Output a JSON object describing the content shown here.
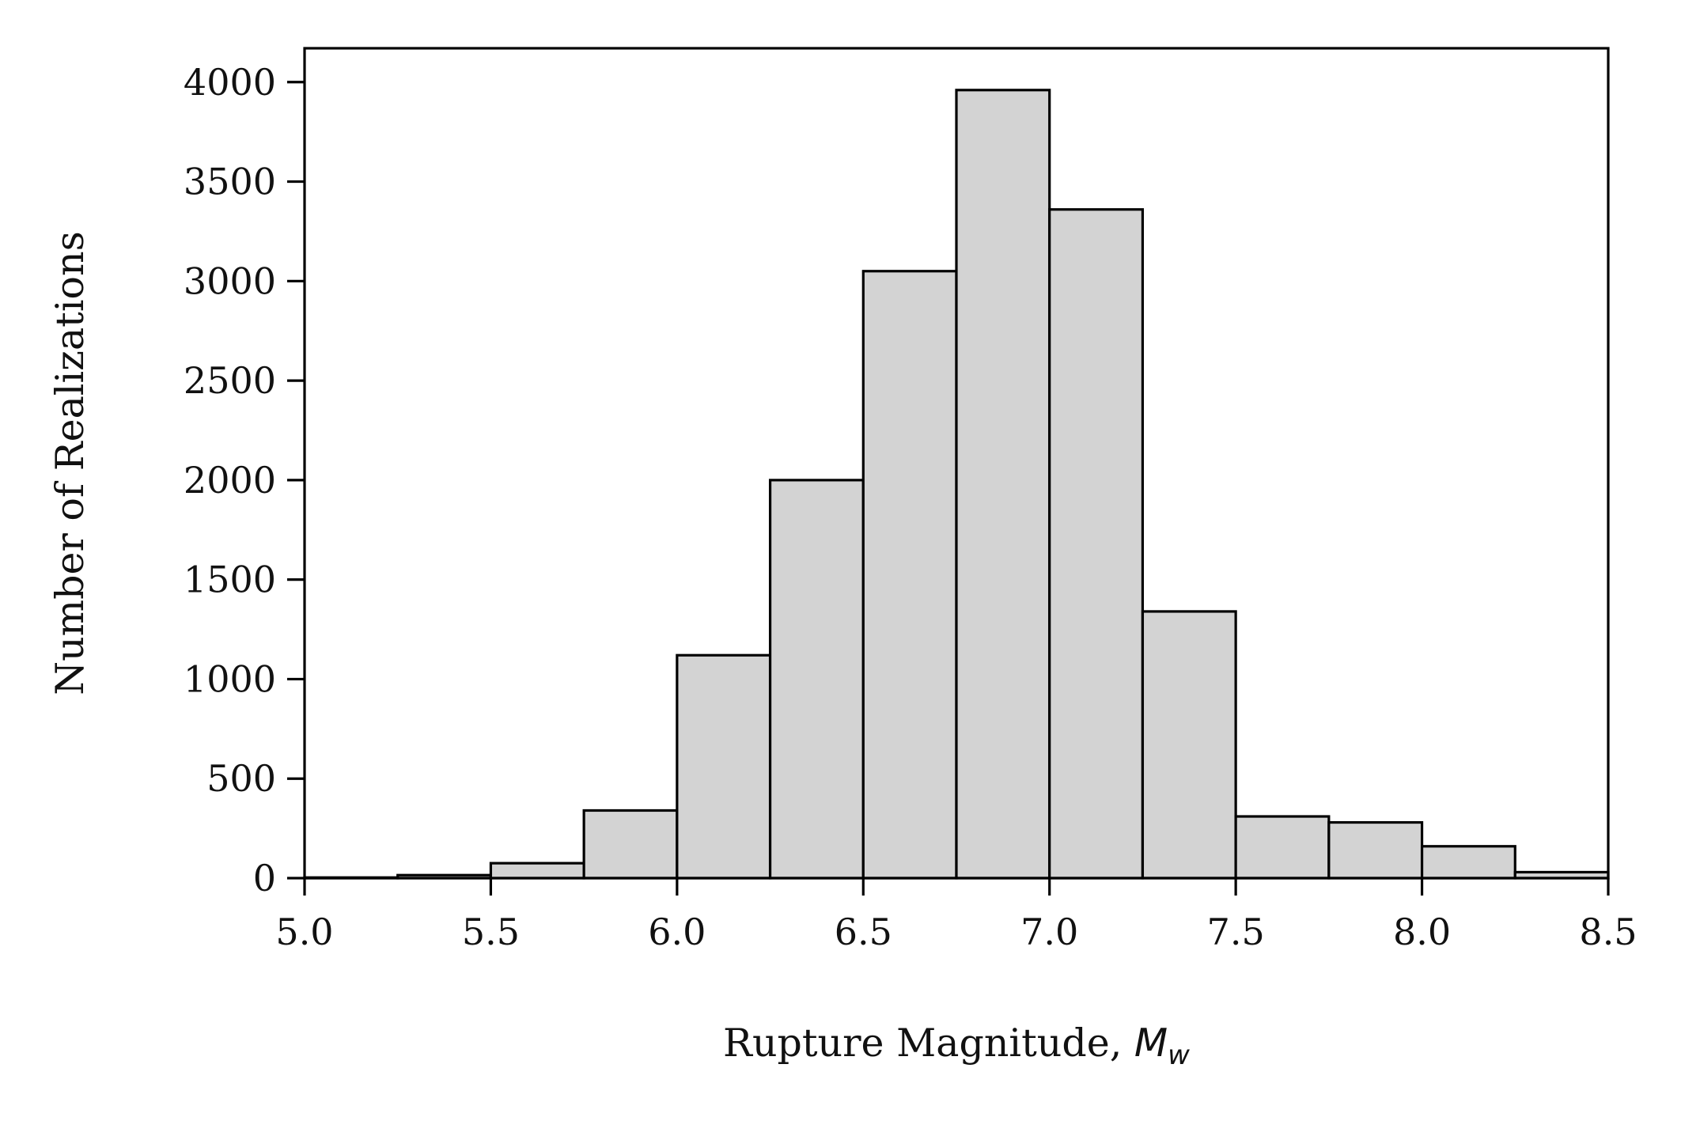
{
  "chart_data": {
    "type": "bar",
    "subtype": "histogram",
    "title": "",
    "xlabel": "Rupture Magnitude, ",
    "xlabel_math": "M",
    "xlabel_math_sub": "w",
    "ylabel": "Number of Realizations",
    "xlim": [
      5.0,
      8.5
    ],
    "ylim": [
      0,
      4170
    ],
    "xticks": [
      5.0,
      5.5,
      6.0,
      6.5,
      7.0,
      7.5,
      8.0,
      8.5
    ],
    "xtick_labels": [
      "5.0",
      "5.5",
      "6.0",
      "6.5",
      "7.0",
      "7.5",
      "8.0",
      "8.5"
    ],
    "yticks": [
      0,
      500,
      1000,
      1500,
      2000,
      2500,
      3000,
      3500,
      4000
    ],
    "ytick_labels": [
      "0",
      "500",
      "1000",
      "1500",
      "2000",
      "2500",
      "3000",
      "3500",
      "4000"
    ],
    "bin_edges": [
      5.0,
      5.25,
      5.5,
      5.75,
      6.0,
      6.25,
      6.5,
      6.75,
      7.0,
      7.25,
      7.5,
      7.75,
      8.0,
      8.25,
      8.5
    ],
    "values": [
      3,
      15,
      75,
      340,
      1120,
      2000,
      3050,
      3960,
      3360,
      1340,
      310,
      280,
      160,
      30
    ],
    "bar_color": "#d3d3d3",
    "edge_color": "#000000",
    "grid": false,
    "legend": "none"
  }
}
